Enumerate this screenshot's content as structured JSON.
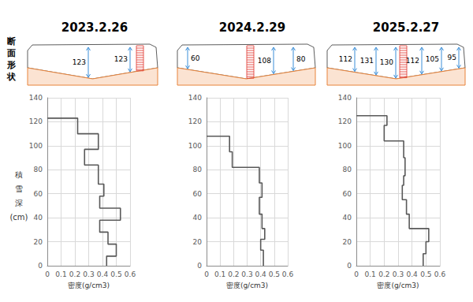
{
  "side_label": "断面形状",
  "chart_data": [
    {
      "type": "step",
      "title": "2023.2.26",
      "section_depths": [
        123,
        123
      ],
      "xlabel": "密度(g/cm3)",
      "ylabel": "積雪深(cm)",
      "bins": [
        0,
        8,
        18,
        28,
        38,
        48,
        58,
        68,
        84,
        97,
        110,
        123
      ],
      "values": [
        0.43,
        0.5,
        0.44,
        0.38,
        0.53,
        0.38,
        0.41,
        0.37,
        0.27,
        0.37,
        0.22
      ],
      "color": "#595959",
      "xlim": [
        0,
        0.6
      ],
      "xticks": [
        0,
        0.1,
        0.2,
        0.3,
        0.4,
        0.5,
        0.6
      ],
      "ylim": [
        0,
        140
      ],
      "yticks": [
        0,
        20,
        40,
        60,
        80,
        100,
        120,
        140
      ],
      "grid": true
    },
    {
      "type": "step",
      "title": "2024.2.29",
      "section_depths": [
        60,
        108,
        80
      ],
      "xlabel": "密度(g/cm3)",
      "bins": [
        0,
        13,
        22,
        31,
        43,
        57,
        69,
        82,
        95,
        108
      ],
      "values": [
        0.42,
        0.4,
        0.43,
        0.41,
        0.39,
        0.41,
        0.39,
        0.19,
        0.17
      ],
      "color": "#595959",
      "xlim": [
        0,
        0.6
      ],
      "xticks": [
        0,
        0.1,
        0.2,
        0.3,
        0.4,
        0.5,
        0.6
      ],
      "ylim": [
        0,
        140
      ],
      "yticks": [
        0,
        20,
        40,
        60,
        80,
        100,
        120,
        140
      ],
      "grid": true
    },
    {
      "type": "step",
      "title": "2025.2.27",
      "section_depths": [
        112,
        131,
        130,
        112,
        105,
        95
      ],
      "xlabel": "密度(g/cm3)",
      "bins": [
        0,
        10,
        20,
        31,
        43,
        55,
        67,
        75,
        90,
        104,
        117,
        125
      ],
      "values": [
        0.48,
        0.5,
        0.52,
        0.38,
        0.36,
        0.33,
        0.34,
        0.35,
        0.34,
        0.2,
        0.22
      ],
      "color": "#595959",
      "xlim": [
        0,
        0.6
      ],
      "xticks": [
        0,
        0.1,
        0.2,
        0.3,
        0.4,
        0.5,
        0.6
      ],
      "ylim": [
        0,
        140
      ],
      "yticks": [
        0,
        20,
        40,
        60,
        80,
        100,
        120,
        140
      ],
      "grid": true
    }
  ]
}
